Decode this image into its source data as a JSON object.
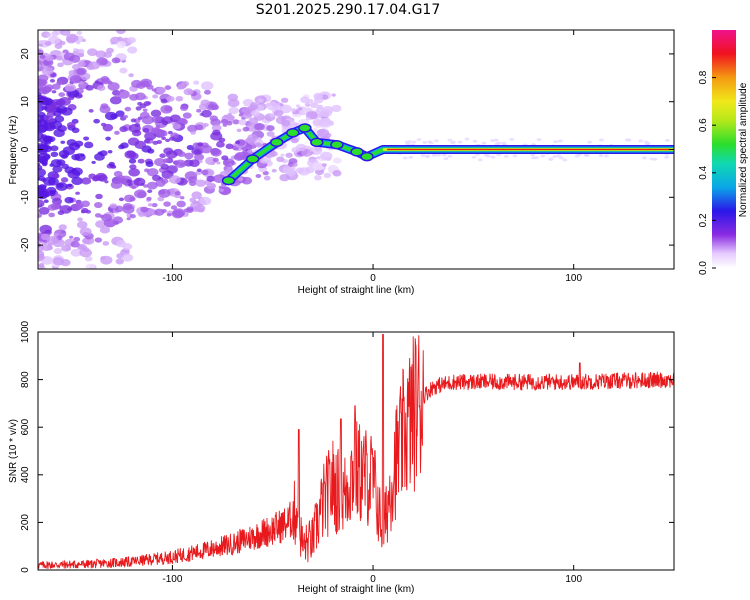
{
  "title": "S201.2025.290.17.04.G17",
  "colors": {
    "snr_line": "#e8191c",
    "spectrogram_core": "#e8191c",
    "spectrogram_scatter": "#5b16e0"
  },
  "chart_data": [
    {
      "type": "heatmap",
      "name": "spectrogram",
      "xlabel": "Height of straight line (km)",
      "ylabel": "Frequency (Hz)",
      "xlim": [
        -167,
        150
      ],
      "ylim": [
        -25,
        25
      ],
      "xticks": [
        -100,
        0,
        100
      ],
      "yticks": [
        20,
        10,
        0,
        -10,
        -20
      ],
      "ridge": {
        "description_points": [
          {
            "x": -72,
            "y": -6.5
          },
          {
            "x": -60,
            "y": -2
          },
          {
            "x": -48,
            "y": 1.5
          },
          {
            "x": -40,
            "y": 3.5
          },
          {
            "x": -34,
            "y": 4.5
          },
          {
            "x": -28,
            "y": 1.5
          },
          {
            "x": -18,
            "y": 1
          },
          {
            "x": -8,
            "y": -0.5
          },
          {
            "x": -3,
            "y": -1.5
          },
          {
            "x": 5,
            "y": 0
          },
          {
            "x": 150,
            "y": 0
          }
        ]
      },
      "colorbar": {
        "label": "Normalized spectral amplitude",
        "ticks": [
          0.0,
          0.2,
          0.4,
          0.6,
          0.8
        ],
        "range": [
          0,
          1
        ]
      }
    },
    {
      "type": "line",
      "name": "snr",
      "xlabel": "Height of straight line (km)",
      "ylabel": "SNR (10 * v/v)",
      "xlim": [
        -167,
        150
      ],
      "ylim": [
        0,
        1000
      ],
      "xticks": [
        -100,
        0,
        100
      ],
      "yticks": [
        0,
        200,
        400,
        600,
        800,
        1000
      ],
      "series": [
        {
          "name": "SNR",
          "x": [
            -167,
            -140,
            -120,
            -100,
            -85,
            -70,
            -60,
            -50,
            -42,
            -38,
            -35,
            -30,
            -25,
            -20,
            -15,
            -10,
            -5,
            0,
            5,
            10,
            15,
            20,
            25,
            30,
            40,
            60,
            80,
            100,
            120,
            150
          ],
          "base": [
            20,
            25,
            35,
            55,
            80,
            110,
            140,
            170,
            200,
            250,
            100,
            130,
            280,
            360,
            300,
            420,
            400,
            380,
            150,
            420,
            560,
            660,
            730,
            770,
            790,
            790,
            790,
            790,
            795,
            800
          ],
          "spikes": [
            {
              "x": -37,
              "y": 590
            },
            {
              "x": -16,
              "y": 635
            },
            {
              "x": -9,
              "y": 690
            },
            {
              "x": 5,
              "y": 990
            },
            {
              "x": 14,
              "y": 660
            },
            {
              "x": 103,
              "y": 870
            }
          ]
        }
      ]
    }
  ]
}
